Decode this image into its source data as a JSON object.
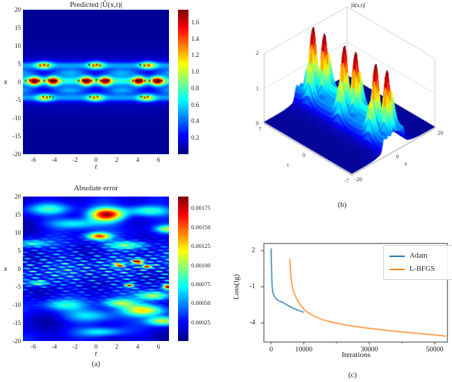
{
  "figure": {
    "background": "#ffffff",
    "captions": {
      "a": "(a)",
      "b": "(b)",
      "c": "(c)"
    },
    "marker_char": "×",
    "text_color": "#1a1a1a"
  },
  "chart_data": [
    {
      "id": "predicted_heatmap",
      "type": "heatmap",
      "title": "Predicted |Û(x,t)|",
      "xlabel": "t",
      "ylabel": "x",
      "x_range": [
        -7,
        7
      ],
      "y_range": [
        -20,
        20
      ],
      "x_ticks": [
        -6,
        -4,
        -2,
        0,
        2,
        4,
        6
      ],
      "y_ticks": [
        20,
        15,
        10,
        5,
        0,
        -5,
        -10,
        -15,
        -20
      ],
      "colormap": "jet",
      "value_range": [
        0,
        1.75
      ],
      "colorbar_ticks": [
        1.6,
        1.4,
        1.2,
        1.0,
        0.8,
        0.6,
        0.4,
        0.2
      ],
      "colorbar_decimals": 1,
      "field": {
        "background": 0.04,
        "mid": {
          "x0": 0.25,
          "sigma": 1.15,
          "base": 0.5,
          "peaks_t": [
            -5.9,
            -4.1,
            -0.9,
            0.9,
            4.1,
            5.9
          ],
          "peak_amp": 1.2,
          "peak_sigma": 0.55
        },
        "upper": {
          "x0": 4.6,
          "sigma": 1.0,
          "base": 0.34,
          "peaks_t": [
            -5,
            0,
            5
          ],
          "peak_amp": 0.75,
          "peak_sigma": 0.75
        },
        "lower": {
          "x0": -4.4,
          "sigma": 1.0,
          "base": 0.34,
          "peaks_t": [
            -4.9,
            -0.05,
            4.85
          ],
          "peak_amp": 0.7,
          "peak_sigma": 0.75
        },
        "halo": {
          "x0": 0.2,
          "sigma": 6.5,
          "amp": 0.18
        },
        "weave": {
          "x_centers": [
            2.5,
            -2.3
          ],
          "sigma": 1.15,
          "amp": 0.32,
          "period": 5
        }
      },
      "training_points": [
        [
          -6.7,
          0.2
        ],
        [
          -6.3,
          0.3
        ],
        [
          -5.8,
          0.1
        ],
        [
          -5.4,
          0.25
        ],
        [
          -4.9,
          0.2
        ],
        [
          -4.5,
          0.3
        ],
        [
          -4.2,
          0.1
        ],
        [
          -3.8,
          0.2
        ],
        [
          -1.6,
          0.2
        ],
        [
          -1.2,
          0.3
        ],
        [
          -0.8,
          0.1
        ],
        [
          -0.4,
          0.2
        ],
        [
          0.1,
          0.3
        ],
        [
          0.5,
          0.1
        ],
        [
          0.9,
          0.2
        ],
        [
          1.25,
          0.3
        ],
        [
          3.6,
          0.2
        ],
        [
          4.0,
          0.1
        ],
        [
          4.4,
          0.3
        ],
        [
          4.75,
          0.2
        ],
        [
          5.2,
          0.1
        ],
        [
          5.6,
          0.3
        ],
        [
          6.0,
          0.2
        ],
        [
          6.35,
          0.1
        ],
        [
          -5.3,
          4.4
        ],
        [
          -4.9,
          4.7
        ],
        [
          -4.55,
          4.4
        ],
        [
          -0.6,
          4.6
        ],
        [
          -0.2,
          4.5
        ],
        [
          0.15,
          4.7
        ],
        [
          0.45,
          4.4
        ],
        [
          4.3,
          4.6
        ],
        [
          4.7,
          4.5
        ],
        [
          5.1,
          4.4
        ],
        [
          -5.0,
          -4.2
        ],
        [
          -4.65,
          -4.45
        ],
        [
          -4.35,
          -4.2
        ],
        [
          -4.05,
          -4.4
        ],
        [
          -0.5,
          -4.3
        ],
        [
          -0.15,
          -4.5
        ],
        [
          0.2,
          -4.3
        ],
        [
          4.4,
          -4.2
        ],
        [
          4.7,
          -4.45
        ],
        [
          5.0,
          -4.25
        ]
      ]
    },
    {
      "id": "absolute_error_heatmap",
      "type": "heatmap",
      "title": "Absolute error",
      "xlabel": "t",
      "ylabel": "x",
      "x_range": [
        -7,
        7
      ],
      "y_range": [
        -20,
        20
      ],
      "x_ticks": [
        -6,
        -4,
        -2,
        0,
        2,
        4,
        6
      ],
      "y_ticks": [
        20,
        15,
        10,
        5,
        0,
        -5,
        -10,
        -15,
        -20
      ],
      "colormap": "jet",
      "value_range": [
        0,
        0.0019
      ],
      "colorbar_ticks": [
        0.00175,
        0.0015,
        0.00125,
        0.001,
        0.00075,
        0.0005,
        0.00025
      ],
      "colorbar_decimals": 5,
      "error_field": {
        "base": 0.00018,
        "base_var": 0.00012,
        "turb_amp": 0.00095,
        "turb_width": 6.5,
        "blobs": [
          [
            1.0,
            15.0,
            1.6,
            1.8,
            0.00165
          ],
          [
            0.3,
            9.0,
            1.1,
            1.0,
            0.0013
          ],
          [
            -2.0,
            12.5,
            2.5,
            1.5,
            0.0006
          ],
          [
            -4.5,
            16.5,
            2.0,
            1.5,
            0.00055
          ],
          [
            5.0,
            16.0,
            2.2,
            1.5,
            0.0007
          ],
          [
            6.8,
            11.0,
            1.0,
            1.0,
            0.0008
          ],
          [
            3.0,
            6.5,
            2.0,
            1.2,
            0.0007
          ],
          [
            -6.0,
            7.0,
            1.5,
            1.0,
            0.0005
          ],
          [
            6.9,
            -5.0,
            0.45,
            0.6,
            0.0017
          ],
          [
            5.5,
            -7.5,
            1.5,
            1.2,
            0.0008
          ],
          [
            4.6,
            -11.5,
            2.0,
            1.6,
            0.0011
          ],
          [
            6.4,
            -14.5,
            1.5,
            1.2,
            0.0009
          ],
          [
            2.3,
            -9.5,
            1.6,
            1.2,
            0.00075
          ],
          [
            -0.5,
            -13.0,
            2.5,
            1.8,
            0.00055
          ],
          [
            -3.0,
            -10.0,
            2.0,
            1.5,
            0.0005
          ],
          [
            -5.5,
            -4.0,
            1.0,
            0.8,
            0.0006
          ],
          [
            0.5,
            -17.5,
            2.0,
            1.2,
            0.0005
          ],
          [
            4.0,
            2.0,
            0.5,
            0.6,
            0.0016
          ],
          [
            4.9,
            0.6,
            0.45,
            0.5,
            0.0014
          ],
          [
            3.2,
            -4.6,
            0.4,
            0.5,
            0.0013
          ],
          [
            2.2,
            1.0,
            0.5,
            0.5,
            0.0011
          ]
        ]
      }
    },
    {
      "id": "exact_surface_3d",
      "type": "surface",
      "title": "|û(x,t)|",
      "t_label": "t",
      "x_label": "x",
      "t_range": [
        -7,
        7
      ],
      "x_range": [
        -20,
        20
      ],
      "z_range": [
        0,
        2
      ],
      "z_ticks": [
        2,
        1,
        0
      ],
      "t_ticks": [
        7,
        0,
        -7
      ],
      "x_ticks": [
        -20,
        0,
        20
      ],
      "colormap": "jet",
      "z_scale_factor": 1.15,
      "z_clamp": 2.2
    },
    {
      "id": "loss_curves",
      "type": "line",
      "xlabel": "Iterations",
      "ylabel": "Loss(lg)",
      "x_ticks": [
        0,
        10000,
        30000,
        50000
      ],
      "x_minor_ticks": [
        20000,
        40000
      ],
      "y_ticks": [
        2,
        -1,
        -4
      ],
      "x_range": [
        -2300,
        53800
      ],
      "y_range": [
        -5.56,
        2.63
      ],
      "legend_position": "upper right",
      "series": [
        {
          "name": "Adam",
          "color": "#1f77b4",
          "x": [
            30,
            80,
            150,
            250,
            350,
            500,
            700,
            1000,
            1400,
            1900,
            2500,
            3200,
            4000,
            4800,
            5600,
            6500,
            7600,
            8800,
            10100
          ],
          "y": [
            2.2,
            1.4,
            0.45,
            -0.5,
            -1.05,
            -1.4,
            -1.6,
            -1.78,
            -1.95,
            -2.08,
            -2.18,
            -2.26,
            -2.36,
            -2.5,
            -2.62,
            -2.75,
            -2.88,
            -3.0,
            -3.12
          ]
        },
        {
          "name": "L-BFGS",
          "color": "#ff7f0e",
          "x": [
            5750,
            5850,
            6000,
            6200,
            6500,
            6900,
            7400,
            8000,
            8700,
            9500,
            10300,
            11300,
            12500,
            14000,
            16000,
            18000,
            20000,
            23000,
            26000,
            30000,
            34000,
            38000,
            42000,
            46000,
            50000,
            53500
          ],
          "y": [
            1.35,
            0.7,
            0.1,
            -0.5,
            -1.0,
            -1.4,
            -1.75,
            -2.1,
            -2.4,
            -2.68,
            -2.95,
            -3.15,
            -3.35,
            -3.55,
            -3.75,
            -3.9,
            -4.02,
            -4.18,
            -4.3,
            -4.45,
            -4.58,
            -4.7,
            -4.8,
            -4.9,
            -5.0,
            -5.1
          ]
        }
      ]
    }
  ]
}
